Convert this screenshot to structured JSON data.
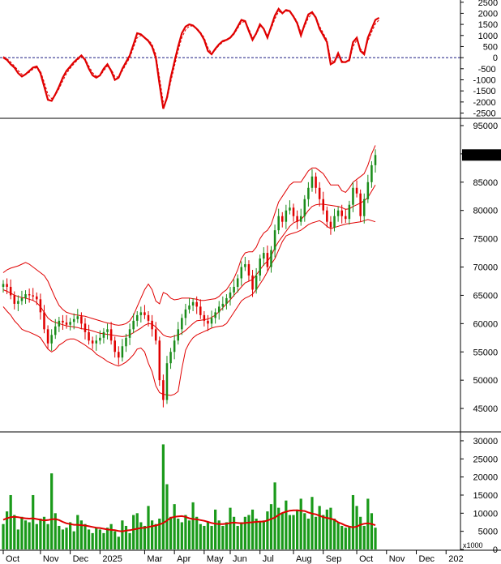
{
  "chart_data": [
    {
      "type": "line",
      "panel": "oscillator",
      "ylim": [
        -2700,
        2600
      ],
      "yticks": [
        2500,
        2000,
        1500,
        1000,
        500,
        0,
        -500,
        -1000,
        -1500,
        -2000,
        -2500
      ],
      "zero_line": "dashed",
      "series": [
        {
          "color": "#e00000",
          "style": "solid",
          "values": [
            0,
            -100,
            -300,
            -450,
            -700,
            -850,
            -750,
            -600,
            -450,
            -400,
            -700,
            -1300,
            -1900,
            -1950,
            -1650,
            -1300,
            -900,
            -600,
            -400,
            -200,
            -50,
            100,
            -100,
            -500,
            -800,
            -900,
            -800,
            -500,
            -300,
            -600,
            -1000,
            -900,
            -500,
            -200,
            100,
            600,
            1100,
            1050,
            900,
            750,
            500,
            0,
            -1200,
            -2300,
            -1800,
            -900,
            -200,
            500,
            1100,
            1400,
            1500,
            1450,
            1300,
            1100,
            800,
            300,
            150,
            400,
            600,
            750,
            800,
            900,
            1100,
            1400,
            1700,
            1650,
            1200,
            800,
            1100,
            1500,
            1300,
            900,
            1400,
            1900,
            2200,
            2000,
            2150,
            2100,
            1850,
            1550,
            1000,
            1500,
            1950,
            2050,
            1800,
            1300,
            1000,
            700,
            -300,
            -200,
            200,
            -200,
            -200,
            -100,
            700,
            900,
            300,
            150,
            900,
            1300,
            1700,
            1800
          ]
        },
        {
          "color": "#e00000",
          "style": "dashed",
          "values": [
            50,
            -50,
            -200,
            -380,
            -580,
            -750,
            -760,
            -660,
            -520,
            -440,
            -600,
            -1100,
            -1650,
            -1850,
            -1700,
            -1400,
            -1050,
            -720,
            -480,
            -280,
            -100,
            50,
            -50,
            -380,
            -680,
            -840,
            -820,
            -600,
            -380,
            -520,
            -850,
            -880,
            -600,
            -300,
            0,
            450,
            900,
            1000,
            920,
            800,
            600,
            150,
            -900,
            -2000,
            -1900,
            -1100,
            -400,
            300,
            900,
            1250,
            1420,
            1430,
            1330,
            1150,
            900,
            450,
            200,
            350,
            550,
            700,
            780,
            870,
            1050,
            1320,
            1600,
            1620,
            1300,
            900,
            1050,
            1400,
            1320,
            1000,
            1300,
            1750,
            2080,
            2020,
            2100,
            2080,
            1900,
            1620,
            1150,
            1400,
            1800,
            1980,
            1850,
            1420,
            1100,
            800,
            -100,
            -200,
            100,
            -150,
            -200,
            -150,
            500,
            800,
            400,
            200,
            750,
            1150,
            1520,
            1700
          ]
        }
      ]
    },
    {
      "type": "candlestick",
      "panel": "price",
      "ylim": [
        41000,
        96000
      ],
      "yticks": [
        95000,
        90000,
        85000,
        80000,
        75000,
        70000,
        65000,
        60000,
        55000,
        50000,
        45000
      ],
      "last_price_label": "89800.00",
      "close": [
        67000,
        66500,
        65000,
        63500,
        64000,
        64500,
        65200,
        65000,
        64800,
        64300,
        62000,
        59000,
        56500,
        58000,
        59500,
        60500,
        60200,
        59800,
        60300,
        60800,
        61300,
        60000,
        58500,
        57000,
        56500,
        57000,
        57500,
        58500,
        59000,
        57000,
        55000,
        54000,
        56000,
        57500,
        59000,
        60500,
        61500,
        62000,
        61500,
        60500,
        59000,
        57000,
        50000,
        46500,
        53000,
        55000,
        57000,
        59000,
        61000,
        62500,
        63200,
        63800,
        63000,
        61500,
        60500,
        60000,
        61000,
        62000,
        63000,
        63500,
        64500,
        65500,
        66500,
        68000,
        70000,
        70500,
        68500,
        66000,
        68500,
        71500,
        72500,
        70000,
        73000,
        76500,
        79000,
        78000,
        80000,
        80500,
        79000,
        78000,
        79000,
        82000,
        84000,
        86000,
        84000,
        82000,
        80000,
        78000,
        77000,
        79000,
        80000,
        79000,
        78500,
        81000,
        84000,
        83000,
        79000,
        82000,
        85000,
        88000,
        89800
      ],
      "upper_band": [
        69000,
        69500,
        69800,
        70000,
        70200,
        70500,
        70800,
        70500,
        70000,
        69500,
        69000,
        68500,
        67500,
        66000,
        64500,
        63200,
        62500,
        62000,
        61800,
        61600,
        61500,
        61400,
        61300,
        61100,
        60900,
        60700,
        60500,
        60300,
        60100,
        60000,
        59800,
        59700,
        59800,
        60000,
        60500,
        61500,
        63000,
        64500,
        66000,
        67000,
        66000,
        64000,
        63500,
        65500,
        65200,
        64500,
        64200,
        64300,
        64500,
        64500,
        64500,
        64400,
        64300,
        64100,
        64100,
        64200,
        64300,
        64400,
        64800,
        65500,
        66000,
        67000,
        68000,
        69500,
        71500,
        72500,
        72700,
        72700,
        73500,
        75000,
        76000,
        76500,
        77500,
        79500,
        81500,
        82500,
        83500,
        84500,
        85000,
        85000,
        85000,
        86000,
        87000,
        87500,
        87500,
        87000,
        86500,
        85500,
        84500,
        84500,
        84500,
        83500,
        83200,
        84000,
        85000,
        85500,
        86000,
        86500,
        88000,
        90000,
        91500
      ],
      "middle_band": [
        66000,
        65700,
        65400,
        65000,
        64800,
        64600,
        64500,
        64300,
        64100,
        63700,
        63000,
        62000,
        61000,
        60500,
        60200,
        60000,
        59800,
        59600,
        59500,
        59400,
        59300,
        59100,
        59000,
        58900,
        58700,
        58500,
        58300,
        58200,
        58100,
        58000,
        57900,
        57800,
        57700,
        57800,
        58000,
        58400,
        58800,
        59200,
        59700,
        60000,
        59900,
        59400,
        58700,
        58000,
        57700,
        57600,
        57800,
        58000,
        58300,
        58800,
        59400,
        60000,
        60500,
        60600,
        60700,
        60800,
        61100,
        61500,
        62100,
        62800,
        63500,
        64200,
        65000,
        65700,
        66500,
        67200,
        67500,
        67800,
        68600,
        69500,
        70400,
        71000,
        72000,
        73400,
        74500,
        75400,
        76300,
        77200,
        77800,
        78100,
        78400,
        79100,
        80000,
        80700,
        81000,
        81100,
        81100,
        81000,
        80900,
        80800,
        80700,
        80500,
        80200,
        80300,
        80700,
        81000,
        81300,
        81700,
        82300,
        83400,
        84500
      ],
      "lower_band": [
        63000,
        62200,
        61500,
        60500,
        59800,
        59000,
        58700,
        58500,
        58200,
        57900,
        57500,
        56500,
        55500,
        55000,
        55400,
        56200,
        56600,
        57100,
        57300,
        57300,
        57000,
        56600,
        56200,
        55700,
        55300,
        54600,
        54200,
        53800,
        53300,
        53000,
        52700,
        52500,
        52800,
        53200,
        53800,
        54500,
        55500,
        55700,
        55000,
        53000,
        51500,
        49000,
        47800,
        47500,
        47400,
        47300,
        47500,
        48000,
        52000,
        55300,
        56600,
        57500,
        58000,
        58300,
        58600,
        58900,
        59200,
        59400,
        59500,
        59600,
        60000,
        61000,
        62000,
        63000,
        64000,
        64500,
        64800,
        65200,
        66000,
        67000,
        68000,
        69200,
        70500,
        71500,
        73000,
        74500,
        75500,
        75800,
        76000,
        76200,
        76500,
        77000,
        77500,
        77800,
        78000,
        78200,
        77800,
        77200,
        76800,
        77000,
        77200,
        77400,
        77600,
        77700,
        77800,
        77900,
        78000,
        78200,
        78400,
        78200,
        78000
      ],
      "up_color": "#1a8c1a",
      "down_color": "#e00000",
      "band_color": "#e00000"
    },
    {
      "type": "bar",
      "panel": "volume",
      "ylabel": "x1000",
      "ylim": [
        0,
        32000
      ],
      "yticks": [
        30000,
        25000,
        20000,
        15000,
        10000,
        5000,
        0
      ],
      "volume": [
        7000,
        10500,
        15000,
        9500,
        5500,
        9000,
        8000,
        7500,
        15000,
        7000,
        8500,
        9000,
        7000,
        21000,
        10000,
        6500,
        5500,
        6000,
        7500,
        5000,
        9500,
        8000,
        7000,
        5500,
        4500,
        6000,
        5500,
        4500,
        6000,
        7000,
        5000,
        3500,
        8000,
        6500,
        4500,
        9500,
        10000,
        7500,
        6500,
        12000,
        8000,
        7000,
        8500,
        29000,
        18000,
        9000,
        12500,
        8500,
        7500,
        9500,
        8000,
        13000,
        9000,
        7000,
        6500,
        7500,
        6500,
        11000,
        8000,
        6500,
        7500,
        11500,
        9000,
        6500,
        7500,
        9000,
        9500,
        11000,
        8500,
        7500,
        8000,
        10500,
        12500,
        18500,
        11500,
        10000,
        13500,
        9500,
        9500,
        11000,
        14000,
        10000,
        8500,
        14500,
        9000,
        12000,
        9500,
        11000,
        11500,
        8500,
        7500,
        6500,
        6000,
        6500,
        15000,
        12000,
        9000,
        6500,
        14000,
        10000,
        6000
      ],
      "ma": [
        8200,
        8600,
        8900,
        9000,
        8900,
        8700,
        8600,
        8500,
        8600,
        8400,
        8200,
        8000,
        8100,
        8300,
        8400,
        8100,
        7600,
        7200,
        7000,
        6800,
        6800,
        6700,
        6600,
        6400,
        6200,
        6000,
        5900,
        5700,
        5500,
        5400,
        5300,
        5100,
        5000,
        5200,
        5300,
        5500,
        5700,
        5900,
        6000,
        6200,
        6400,
        6600,
        6900,
        7300,
        8000,
        8700,
        9000,
        9100,
        9200,
        9000,
        8600,
        8400,
        8300,
        8100,
        7900,
        7600,
        7300,
        7100,
        7000,
        7000,
        7100,
        7300,
        7400,
        7300,
        7200,
        7300,
        7400,
        7500,
        7600,
        7700,
        7700,
        8000,
        8400,
        8800,
        9500,
        10100,
        10400,
        10700,
        10800,
        10800,
        10700,
        10600,
        10200,
        9900,
        9700,
        9300,
        8900,
        8700,
        8500,
        8200,
        7500,
        7100,
        6600,
        6300,
        6100,
        6300,
        6800,
        7100,
        7200,
        7000,
        6700
      ],
      "bar_color": "#1a9a1a",
      "ma_color": "#e00000"
    }
  ],
  "x_axis": {
    "labels": [
      "Oct",
      "Nov",
      "Dec",
      "2025",
      "Mar",
      "Apr",
      "May",
      "Jun",
      "Jul",
      "Aug",
      "Sep",
      "Oct",
      "Nov",
      "Dec",
      "202"
    ],
    "label_indices": [
      0,
      10,
      18,
      26,
      38,
      46,
      54,
      61,
      69,
      78,
      86,
      95,
      103,
      111,
      119
    ]
  }
}
